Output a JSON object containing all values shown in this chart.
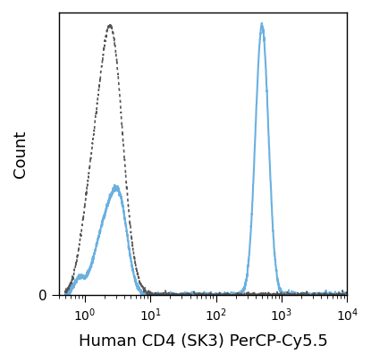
{
  "title": "",
  "xlabel": "Human CD4 (SK3) PerCP-Cy5.5",
  "ylabel": "Count",
  "xlim_log": [
    0.4,
    10000
  ],
  "ylim": [
    0,
    1.05
  ],
  "background_color": "#ffffff",
  "solid_color": "#6ab0e0",
  "dashed_color": "#555555",
  "xlabel_fontsize": 13,
  "ylabel_fontsize": 13
}
